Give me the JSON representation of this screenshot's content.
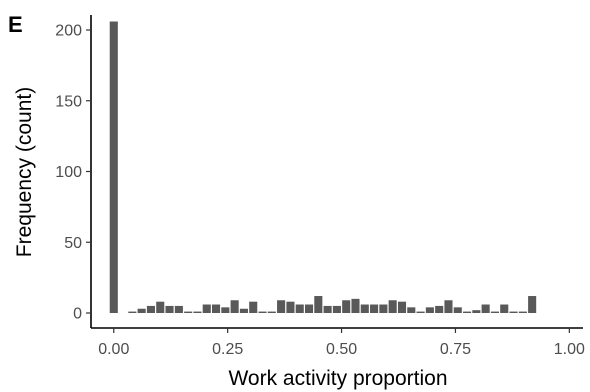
{
  "chart_data": {
    "type": "bar",
    "panel_label": "E",
    "xlabel": "Work activity proportion",
    "ylabel": "Frequency (count)",
    "xlim": [
      -0.05,
      1.03
    ],
    "ylim": [
      0,
      215
    ],
    "x_ticks": [
      0.0,
      0.25,
      0.5,
      0.75,
      1.0
    ],
    "x_tick_labels": [
      "0.00",
      "0.25",
      "0.50",
      "0.75",
      "1.00"
    ],
    "y_ticks": [
      0,
      50,
      100,
      150,
      200
    ],
    "y_tick_labels": [
      "0",
      "50",
      "100",
      "150",
      "200"
    ],
    "bin_width": 0.0204,
    "x": [
      0.0,
      0.0408,
      0.0612,
      0.0816,
      0.102,
      0.1224,
      0.1429,
      0.1633,
      0.1837,
      0.2041,
      0.2245,
      0.2449,
      0.2653,
      0.2857,
      0.3061,
      0.3265,
      0.3469,
      0.3673,
      0.3878,
      0.4082,
      0.4286,
      0.449,
      0.4694,
      0.4898,
      0.5102,
      0.5306,
      0.551,
      0.5714,
      0.5918,
      0.6122,
      0.6327,
      0.6531,
      0.6735,
      0.6939,
      0.7143,
      0.7347,
      0.7551,
      0.7755,
      0.7959,
      0.8163,
      0.8367,
      0.8571,
      0.8776,
      0.898,
      0.9184,
      0.9388,
      0.9592,
      0.9796,
      1.0
    ],
    "values": [
      206,
      1,
      3,
      5,
      8,
      5,
      5,
      1,
      1,
      6,
      6,
      4,
      9,
      3,
      8,
      1,
      1,
      9,
      8,
      6,
      6,
      12,
      5,
      5,
      9,
      10,
      6,
      6,
      6,
      9,
      8,
      4,
      1,
      4,
      5,
      9,
      4,
      1,
      2,
      6,
      1,
      6,
      1,
      1,
      12,
      0,
      0,
      0,
      0
    ],
    "colors": {
      "bar": "#595959",
      "axis": "#000000",
      "tick_label": "#4d4d4d"
    },
    "grid": false
  }
}
